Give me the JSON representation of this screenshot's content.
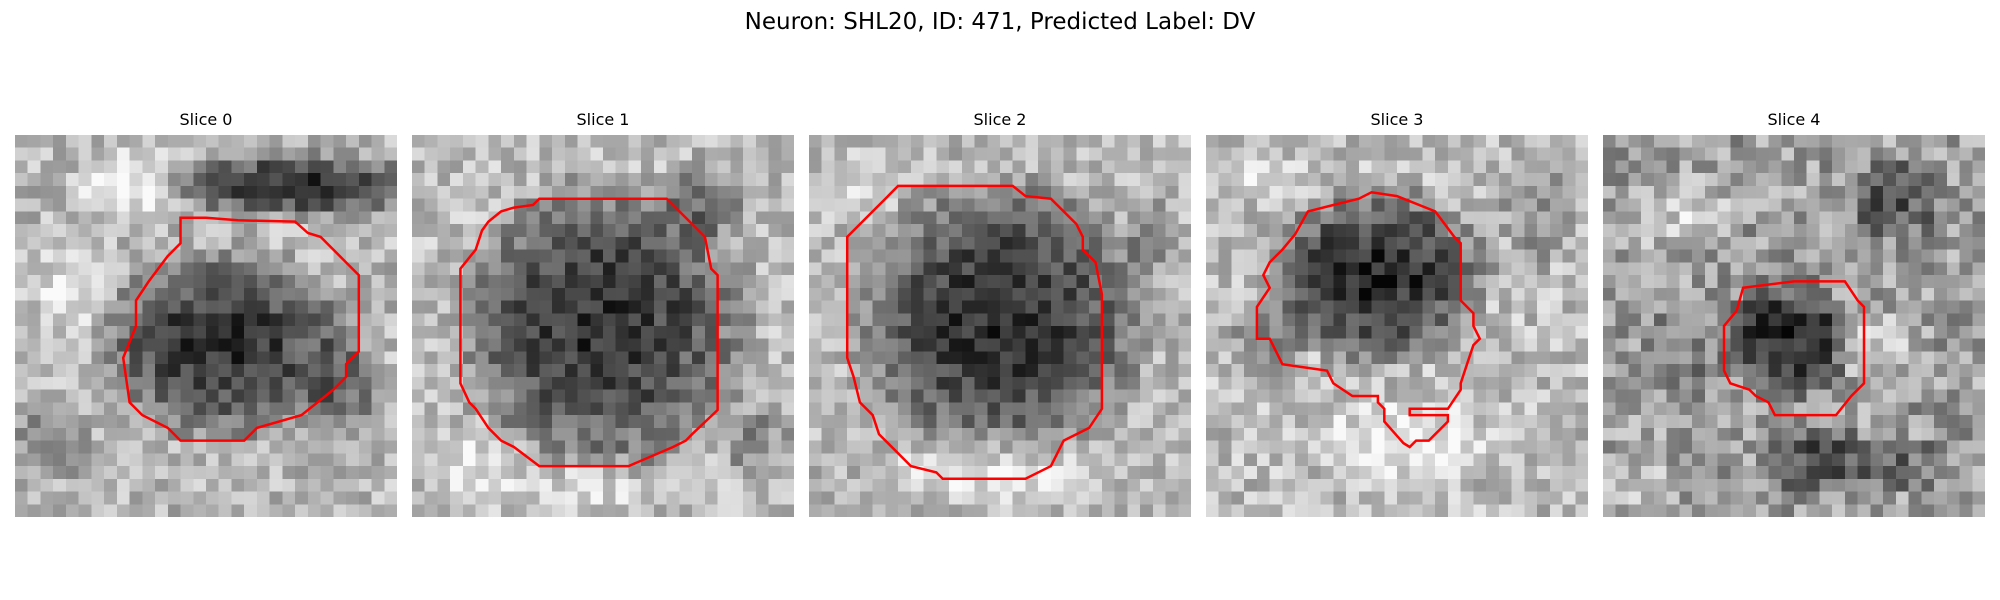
{
  "figure": {
    "title": "Neuron: SHL20, ID: 471, Predicted Label: DV"
  },
  "panels": [
    {
      "title": "Slice 0"
    },
    {
      "title": "Slice 1"
    },
    {
      "title": "Slice 2"
    },
    {
      "title": "Slice 3"
    },
    {
      "title": "Slice 4"
    }
  ],
  "colors": {
    "background": "#ffffff",
    "contour": "#ff0000",
    "image_colormap": "grayscale"
  }
}
